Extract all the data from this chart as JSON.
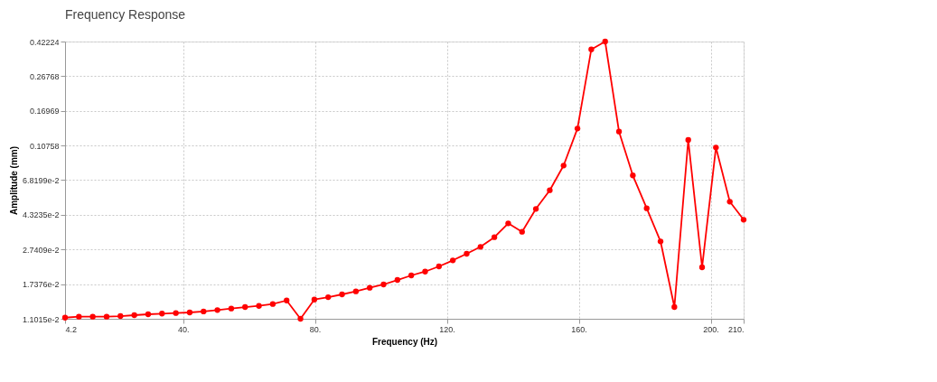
{
  "chart_data": {
    "type": "line",
    "title": "Frequency Response",
    "xlabel": "Frequency (Hz)",
    "ylabel": "Amplitude (mm)",
    "x": [
      4.2,
      8.4,
      12.6,
      16.8,
      21.0,
      25.2,
      29.4,
      33.6,
      37.8,
      42.0,
      46.2,
      50.4,
      54.6,
      58.8,
      63.0,
      67.2,
      71.4,
      75.6,
      79.8,
      84.0,
      88.2,
      92.4,
      96.6,
      100.8,
      105.0,
      109.2,
      113.4,
      117.6,
      121.8,
      126.0,
      130.2,
      134.4,
      138.6,
      142.8,
      147.0,
      151.2,
      155.4,
      159.6,
      163.8,
      168.0,
      172.2,
      176.4,
      180.6,
      184.8,
      189.0,
      193.2,
      197.4,
      201.6,
      205.8,
      210.0
    ],
    "series": [
      {
        "color": "#ff0000",
        "values": [
          0.01118,
          0.01132,
          0.01132,
          0.01132,
          0.01141,
          0.01155,
          0.01169,
          0.01179,
          0.01187,
          0.01197,
          0.01212,
          0.01236,
          0.0126,
          0.01285,
          0.01305,
          0.01337,
          0.01401,
          0.011015,
          0.01418,
          0.01464,
          0.01518,
          0.01579,
          0.01656,
          0.0173,
          0.01835,
          0.01948,
          0.02049,
          0.02193,
          0.02375,
          0.02591,
          0.02838,
          0.0322,
          0.03866,
          0.03457,
          0.04674,
          0.0597,
          0.08266,
          0.1345,
          0.3807,
          0.42224,
          0.1292,
          0.07256,
          0.04708,
          0.03048,
          0.01285,
          0.1157,
          0.02168,
          0.1048,
          0.0514,
          0.04053
        ]
      }
    ],
    "xlim": [
      4.2,
      210
    ],
    "xticks": [
      4.2,
      {
        "value": 40,
        "label": "40."
      },
      {
        "value": 80,
        "label": "80."
      },
      {
        "value": 120,
        "label": "120."
      },
      {
        "value": 160,
        "label": "160."
      },
      {
        "value": 200,
        "label": "200."
      },
      {
        "value": 210,
        "label": "210."
      }
    ],
    "ylim": [
      0.011015,
      0.42224
    ],
    "yticks": [
      {
        "value": 0.011015,
        "label": "1.1015e-2"
      },
      {
        "value": 0.017376,
        "label": "1.7376e-2"
      },
      {
        "value": 0.027409,
        "label": "2.7409e-2"
      },
      {
        "value": 0.043235,
        "label": "4.3235e-2"
      },
      {
        "value": 0.068199,
        "label": "6.8199e-2"
      },
      0.10758,
      0.16969,
      0.26768,
      0.42224
    ],
    "log": true,
    "grid": true,
    "marker": "circle",
    "line_style": "solid"
  }
}
